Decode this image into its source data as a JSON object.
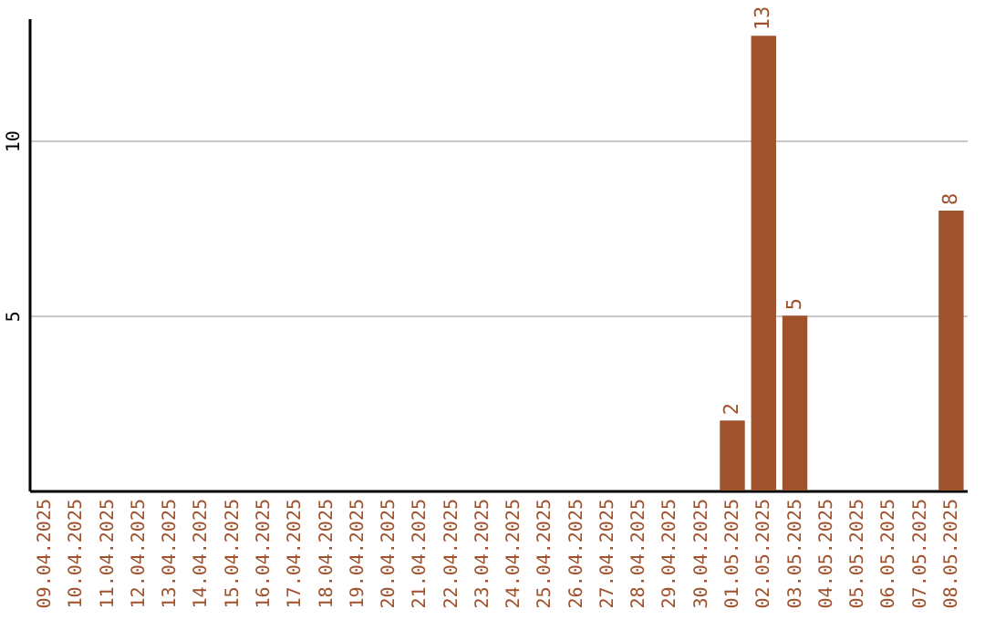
{
  "chart_data": {
    "type": "bar",
    "categories": [
      "09.04.2025",
      "10.04.2025",
      "11.04.2025",
      "12.04.2025",
      "13.04.2025",
      "14.04.2025",
      "15.04.2025",
      "16.04.2025",
      "17.04.2025",
      "18.04.2025",
      "19.04.2025",
      "20.04.2025",
      "21.04.2025",
      "22.04.2025",
      "23.04.2025",
      "24.04.2025",
      "25.04.2025",
      "26.04.2025",
      "27.04.2025",
      "28.04.2025",
      "29.04.2025",
      "30.04.2025",
      "01.05.2025",
      "02.05.2025",
      "03.05.2025",
      "04.05.2025",
      "05.05.2025",
      "06.05.2025",
      "07.05.2025",
      "08.05.2025"
    ],
    "values": [
      0,
      0,
      0,
      0,
      0,
      0,
      0,
      0,
      0,
      0,
      0,
      0,
      0,
      0,
      0,
      0,
      0,
      0,
      0,
      0,
      0,
      0,
      2,
      13,
      5,
      0,
      0,
      0,
      0,
      8
    ],
    "value_labels": [
      null,
      null,
      null,
      null,
      null,
      null,
      null,
      null,
      null,
      null,
      null,
      null,
      null,
      null,
      null,
      null,
      null,
      null,
      null,
      null,
      null,
      null,
      "2",
      "13",
      "5",
      null,
      null,
      null,
      null,
      "8"
    ],
    "color": "#a0522d",
    "ylim": [
      0,
      13.5
    ],
    "yticks": [
      5,
      10
    ],
    "grid": "y"
  }
}
